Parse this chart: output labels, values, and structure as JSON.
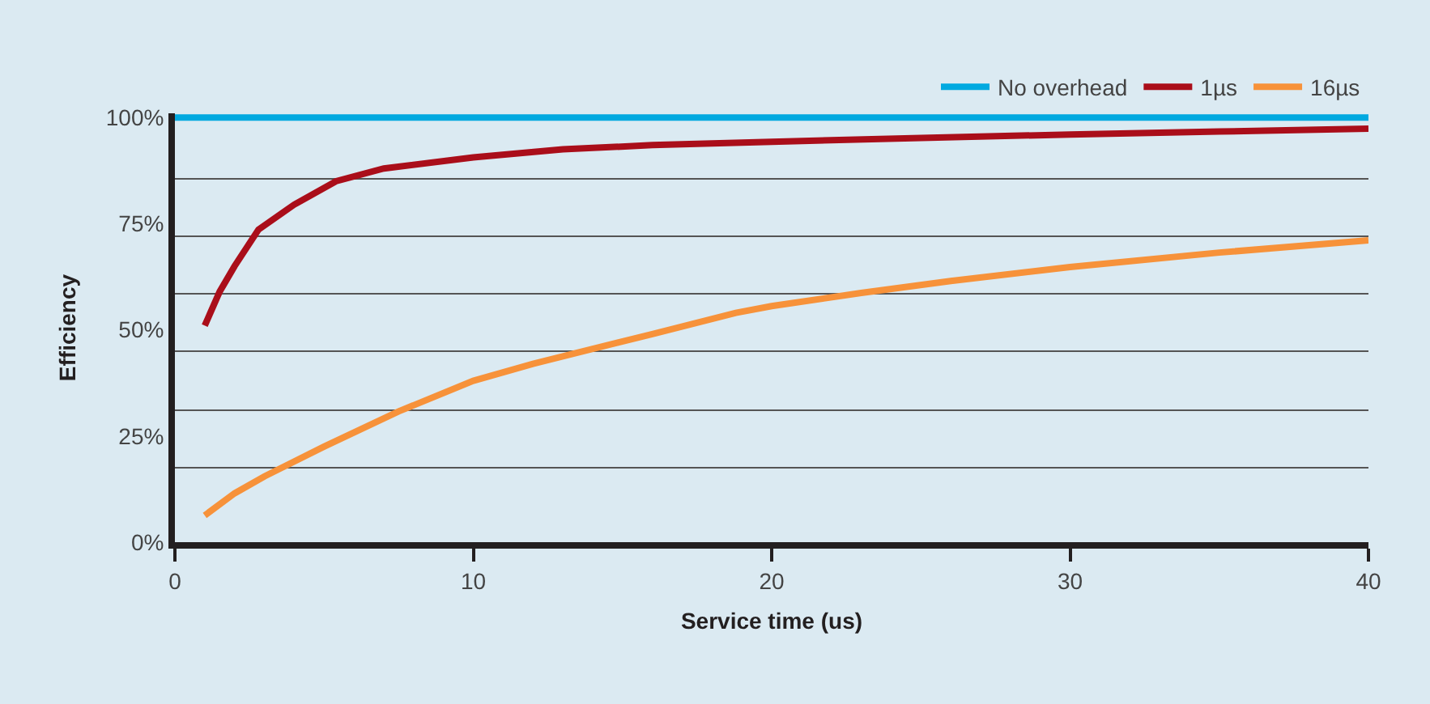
{
  "chart_data": {
    "type": "line",
    "xlabel": "Service time (us)",
    "ylabel": "Efficiency",
    "xlim": [
      0,
      40
    ],
    "xticks": [
      0,
      10,
      20,
      30,
      40
    ],
    "ylim": [
      0,
      101
    ],
    "yticks": [
      {
        "value": 0,
        "label": "0%"
      },
      {
        "value": 17.5,
        "label": null
      },
      {
        "value": 25,
        "label": "25%"
      },
      {
        "value": 31,
        "label": null
      },
      {
        "value": 45,
        "label": null
      },
      {
        "value": 50,
        "label": "50%"
      },
      {
        "value": 58.5,
        "label": null
      },
      {
        "value": 72,
        "label": null
      },
      {
        "value": 75,
        "label": "75%"
      },
      {
        "value": 85.5,
        "label": null
      },
      {
        "value": 100,
        "label": "100%"
      }
    ],
    "grid": "y",
    "legend": "top right",
    "marker": "none",
    "line_style": "solid",
    "series": [
      {
        "name": "No overhead",
        "color": "#00a9e0",
        "x": [
          0,
          40
        ],
        "values": [
          100,
          100
        ]
      },
      {
        "name": "1µs",
        "color": "#aa0e1a",
        "x": [
          1,
          1.5,
          2,
          2.8,
          4,
          5.4,
          7,
          10,
          13,
          16,
          20,
          25,
          30,
          35,
          40
        ],
        "values": [
          51,
          59,
          65,
          73.6,
          79.5,
          85,
          88,
          90.6,
          92.5,
          93.5,
          94.3,
          95.2,
          96,
          96.7,
          97.4
        ]
      },
      {
        "name": "16µs",
        "color": "#f7923a",
        "x": [
          1,
          2,
          3,
          5,
          7.5,
          10,
          12,
          14,
          16,
          18.8,
          20,
          23,
          26,
          30,
          35,
          40
        ],
        "values": [
          6.3,
          11.5,
          15.5,
          22.5,
          30.8,
          38,
          42,
          45.5,
          49,
          54,
          55.6,
          58.7,
          61.5,
          64.8,
          68.2,
          71.1
        ]
      }
    ]
  }
}
